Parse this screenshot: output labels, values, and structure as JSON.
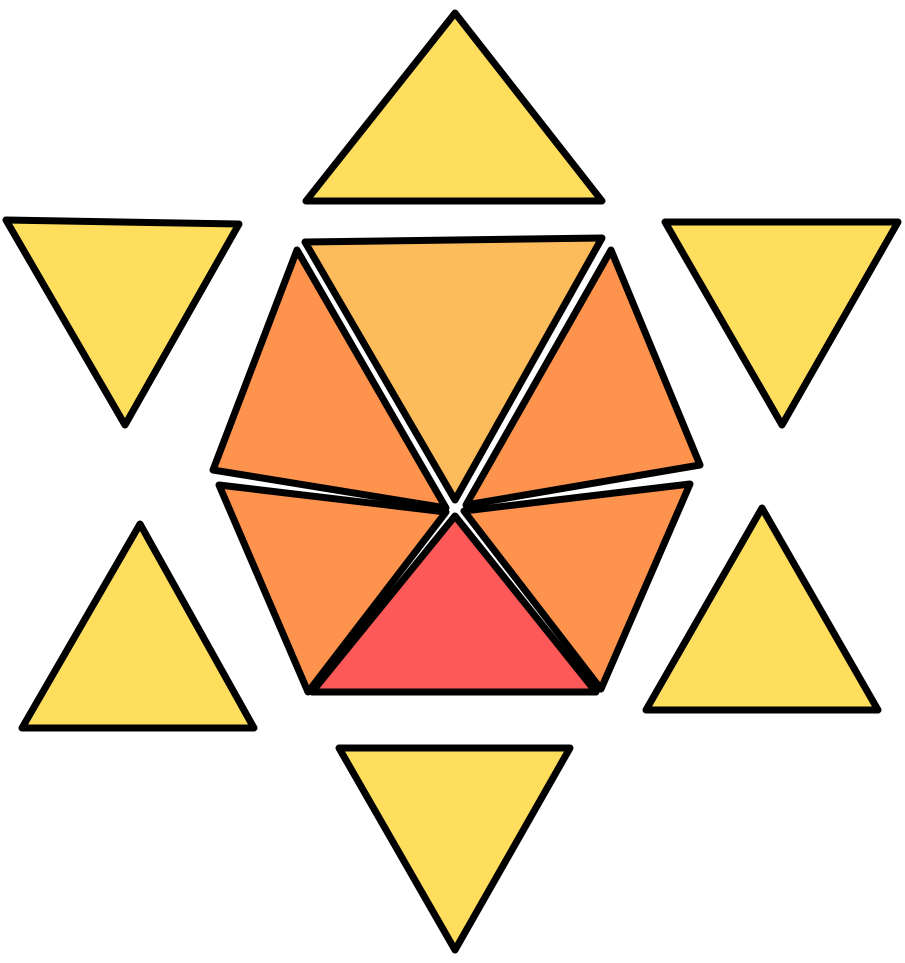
{
  "colors": {
    "outer": "#FEDE5C",
    "hex_light": "#FDBC5B",
    "hex_mid": "#FD934C",
    "hex_accent": "#FE5959",
    "stroke": "#000000",
    "background": "#FFFFFF"
  },
  "pieces": [
    {
      "name": "outer-triangle-top",
      "fill": "outer"
    },
    {
      "name": "outer-triangle-upper-left",
      "fill": "outer"
    },
    {
      "name": "outer-triangle-upper-right",
      "fill": "outer"
    },
    {
      "name": "outer-triangle-lower-left",
      "fill": "outer"
    },
    {
      "name": "outer-triangle-lower-right",
      "fill": "outer"
    },
    {
      "name": "outer-triangle-bottom",
      "fill": "outer"
    },
    {
      "name": "hexagon-segment-top",
      "fill": "hex_light"
    },
    {
      "name": "hexagon-segment-upper-left",
      "fill": "hex_mid"
    },
    {
      "name": "hexagon-segment-upper-right",
      "fill": "hex_mid"
    },
    {
      "name": "hexagon-segment-lower-left",
      "fill": "hex_mid"
    },
    {
      "name": "hexagon-segment-lower-right",
      "fill": "hex_mid"
    },
    {
      "name": "hexagon-segment-bottom",
      "fill": "hex_accent"
    }
  ]
}
